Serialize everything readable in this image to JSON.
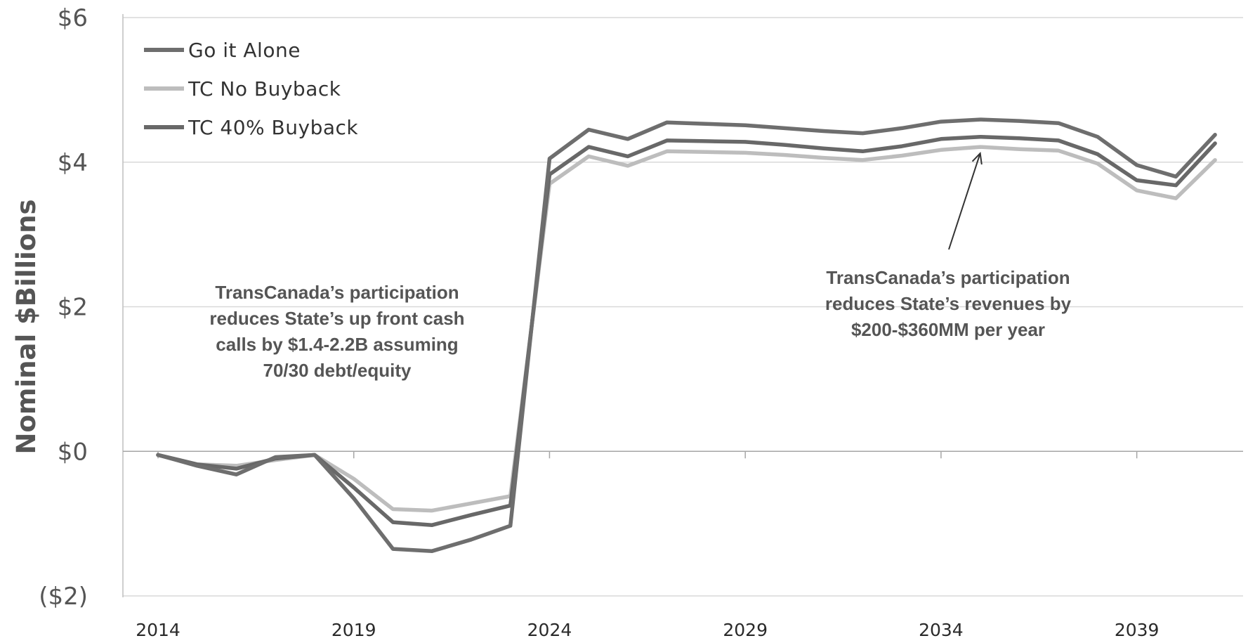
{
  "chart_data": {
    "type": "line",
    "ylabel": "Nominal $Billions",
    "xlabel": "",
    "x_tick_labels": [
      "2014",
      "2019",
      "2024",
      "2029",
      "2034",
      "2039"
    ],
    "x_tick_values": [
      2014,
      2019,
      2024,
      2029,
      2034,
      2039
    ],
    "y_tick_labels": [
      "$6",
      "$4",
      "$2",
      "$0",
      "($2)"
    ],
    "y_tick_values": [
      6,
      4,
      2,
      0,
      -2
    ],
    "xlim": [
      2014,
      2041.5
    ],
    "ylim": [
      -2,
      6
    ],
    "grid": "horizontal",
    "legend_position": "top-left",
    "x": [
      2014,
      2015,
      2016,
      2017,
      2018,
      2019,
      2020,
      2021,
      2022,
      2023,
      2024,
      2025,
      2026,
      2027,
      2028,
      2029,
      2030,
      2031,
      2032,
      2033,
      2034,
      2035,
      2036,
      2037,
      2038,
      2039,
      2040,
      2041
    ],
    "series": [
      {
        "name": "Go it Alone",
        "color": "#6e6e6e",
        "values": [
          -0.05,
          -0.2,
          -0.32,
          -0.08,
          -0.05,
          -0.65,
          -1.35,
          -1.38,
          -1.22,
          -1.03,
          4.05,
          4.45,
          4.32,
          4.55,
          4.53,
          4.51,
          4.47,
          4.43,
          4.4,
          4.47,
          4.56,
          4.59,
          4.57,
          4.54,
          4.35,
          3.96,
          3.8,
          4.38
        ]
      },
      {
        "name": "TC No Buyback",
        "color": "#bdbdbd",
        "values": [
          -0.05,
          -0.18,
          -0.2,
          -0.12,
          -0.05,
          -0.38,
          -0.8,
          -0.82,
          -0.72,
          -0.62,
          3.7,
          4.08,
          3.95,
          4.15,
          4.14,
          4.13,
          4.1,
          4.06,
          4.03,
          4.09,
          4.17,
          4.21,
          4.18,
          4.16,
          3.98,
          3.61,
          3.5,
          4.03
        ]
      },
      {
        "name": "TC 40% Buyback",
        "color": "#686868",
        "values": [
          -0.05,
          -0.18,
          -0.24,
          -0.1,
          -0.05,
          -0.5,
          -0.98,
          -1.02,
          -0.88,
          -0.75,
          3.83,
          4.21,
          4.08,
          4.3,
          4.29,
          4.28,
          4.24,
          4.19,
          4.15,
          4.22,
          4.32,
          4.35,
          4.33,
          4.3,
          4.11,
          3.75,
          3.68,
          4.26
        ]
      }
    ],
    "annotations": [
      {
        "id": "left",
        "lines": [
          "TransCanada’s participation",
          "reduces State’s up front cash",
          "calls by $1.4-2.2B assuming",
          "70/30 debt/equity"
        ]
      },
      {
        "id": "right",
        "lines": [
          "TransCanada’s participation",
          "reduces State’s revenues by",
          "$200-$360MM per year"
        ],
        "arrow_target": {
          "x": 2035,
          "y": 4.2
        }
      }
    ]
  }
}
